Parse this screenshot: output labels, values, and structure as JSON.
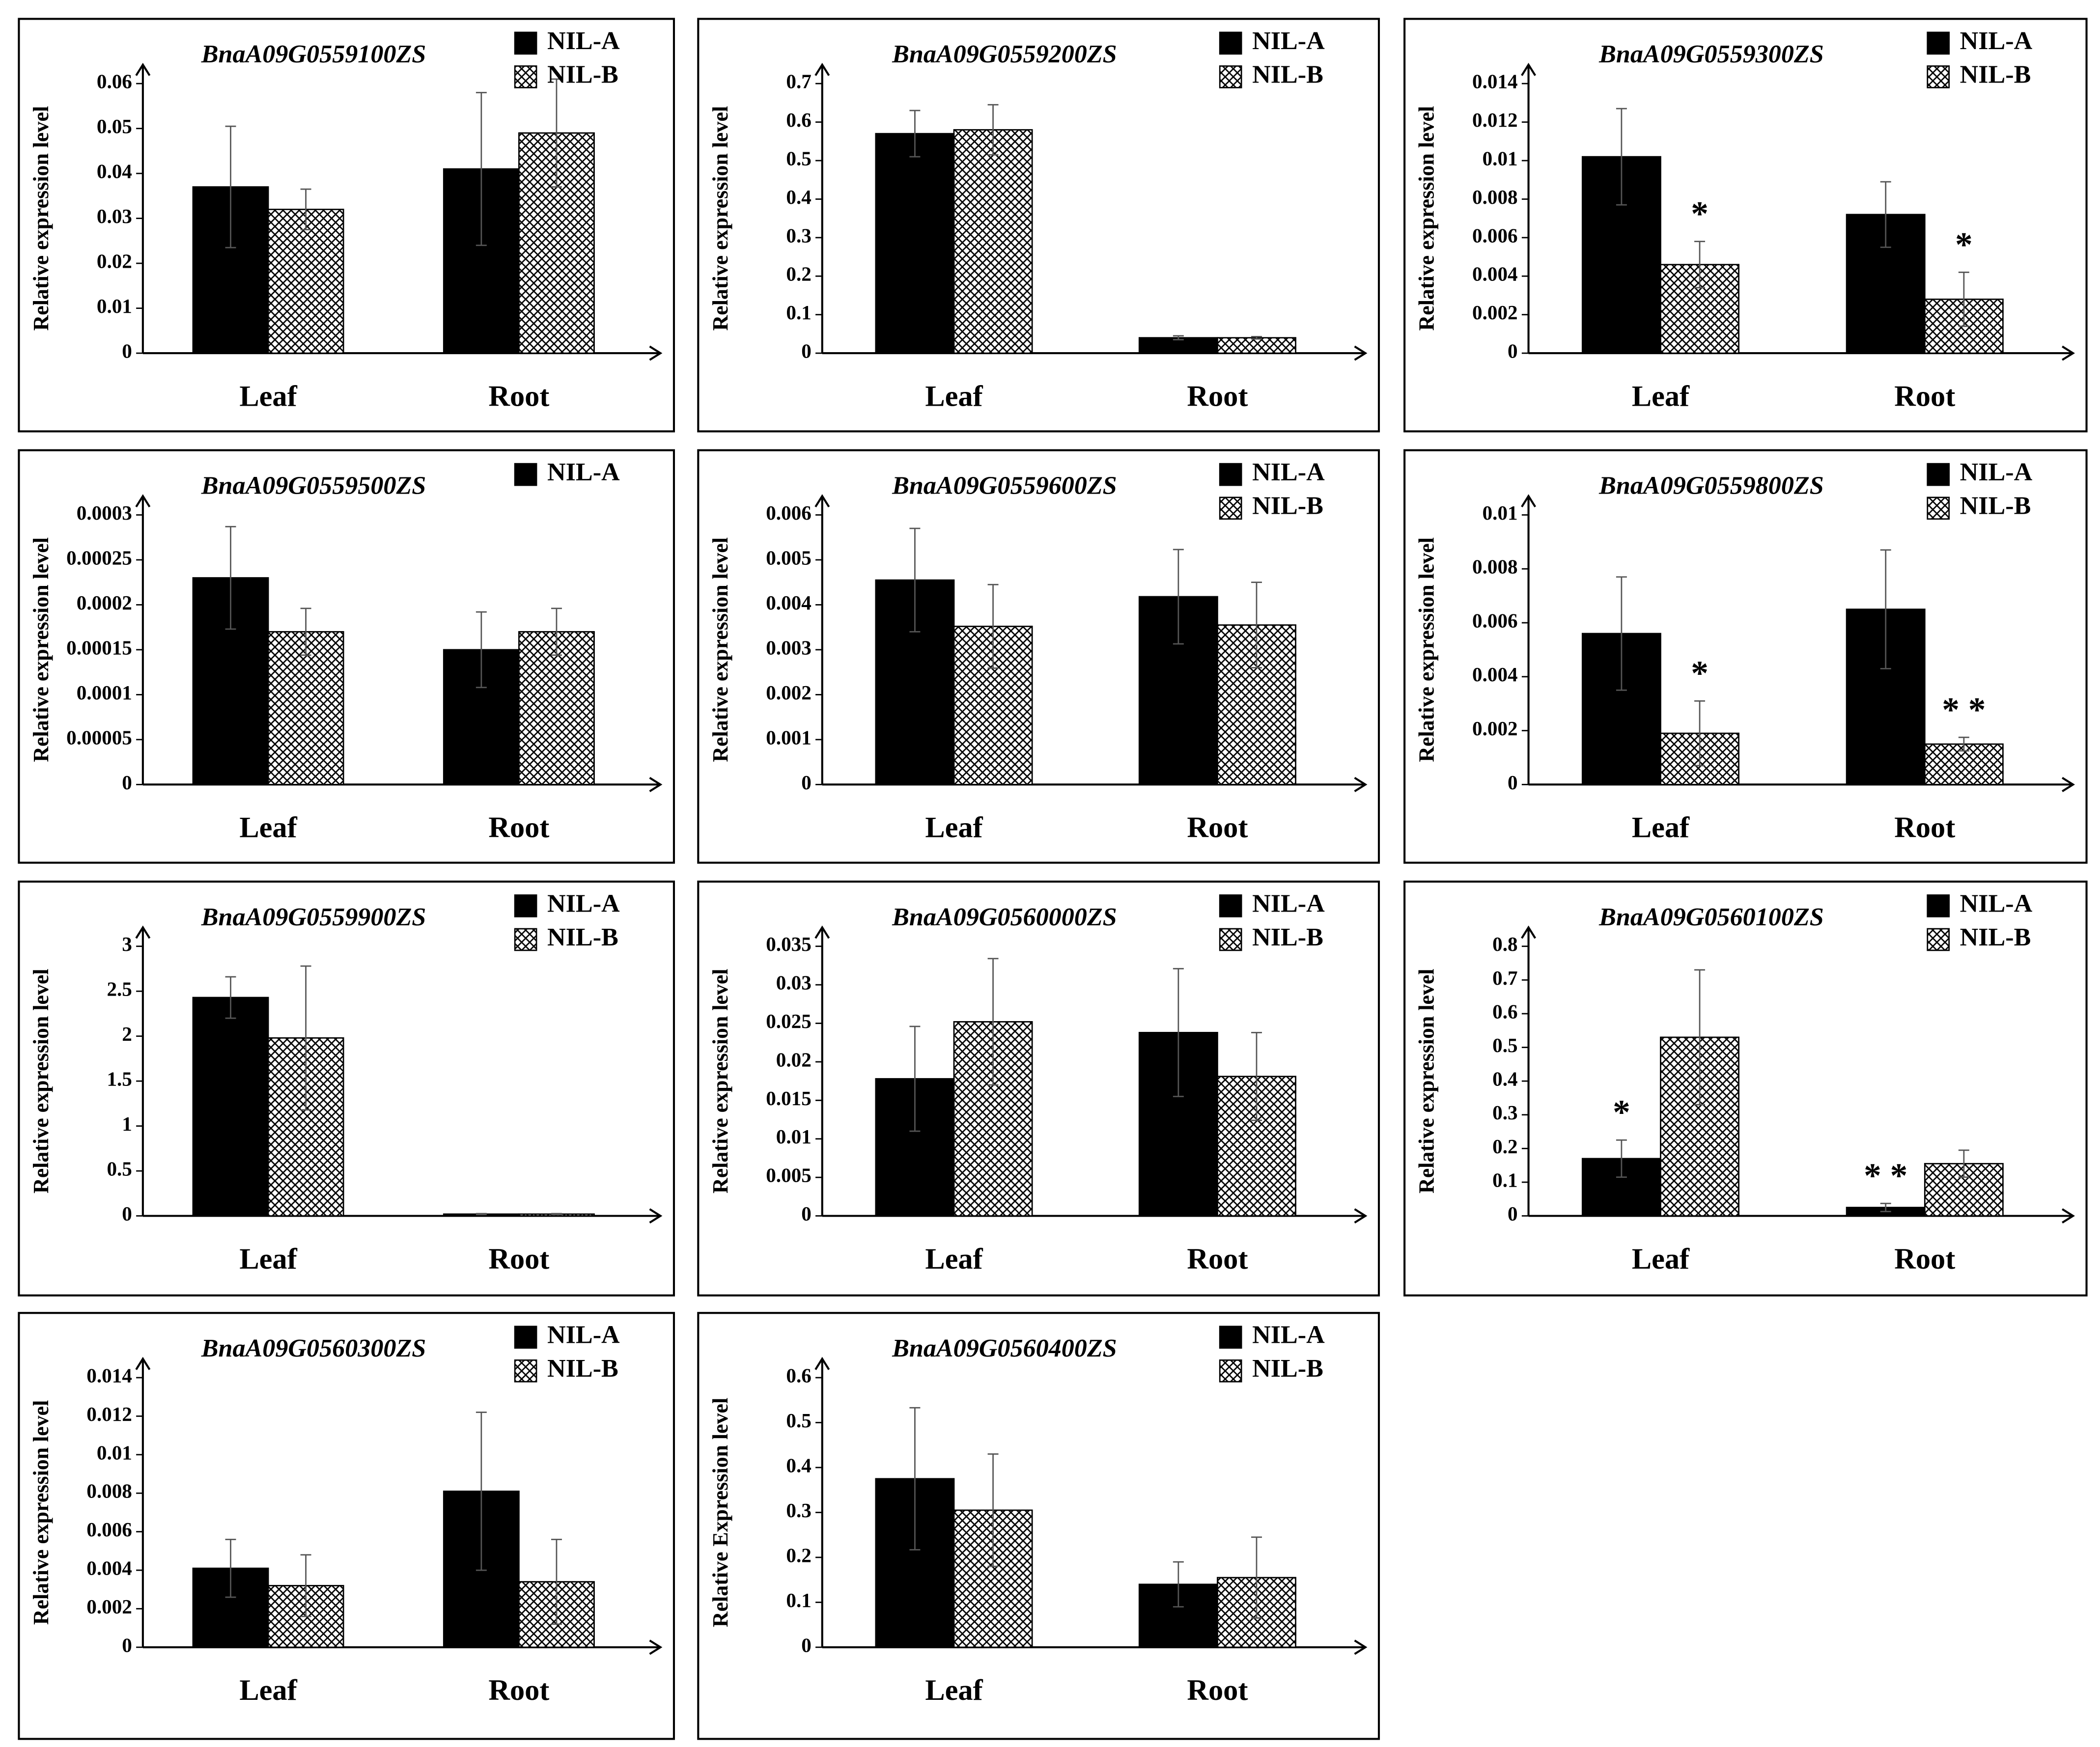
{
  "chart_data": [
    {
      "type": "bar",
      "title": "BnaA09G0559100ZS",
      "y_label": "Relative expression level",
      "categories": [
        "Leaf",
        "Root"
      ],
      "series": [
        {
          "name": "NIL-A",
          "color": "#000000",
          "values": [
            0.037,
            0.041
          ],
          "errors": [
            0.0135,
            0.017
          ]
        },
        {
          "name": "NIL-B",
          "color": "#ffffff",
          "hatch": true,
          "values": [
            0.032,
            0.049
          ],
          "errors": [
            0.0045,
            0.012
          ]
        }
      ],
      "ylim": [
        0,
        0.06
      ],
      "yticks": [
        0,
        0.01,
        0.02,
        0.03,
        0.04,
        0.05,
        0.06
      ]
    },
    {
      "type": "bar",
      "title": "BnaA09G0559200ZS",
      "y_label": "Relative expression level",
      "categories": [
        "Leaf",
        "Root"
      ],
      "series": [
        {
          "name": "NIL-A",
          "color": "#000000",
          "values": [
            0.57,
            0.04
          ],
          "errors": [
            0.06,
            0.005
          ]
        },
        {
          "name": "NIL-B",
          "color": "#ffffff",
          "hatch": true,
          "values": [
            0.58,
            0.04
          ],
          "errors": [
            0.065,
            0.003
          ]
        }
      ],
      "ylim": [
        0,
        0.7
      ],
      "yticks": [
        0,
        0.1,
        0.2,
        0.3,
        0.4,
        0.5,
        0.6,
        0.7
      ]
    },
    {
      "type": "bar",
      "title": "BnaA09G0559300ZS",
      "y_label": "Relative expression level",
      "categories": [
        "Leaf",
        "Root"
      ],
      "series": [
        {
          "name": "NIL-A",
          "color": "#000000",
          "values": [
            0.0102,
            0.0072
          ],
          "errors": [
            0.0025,
            0.0017
          ]
        },
        {
          "name": "NIL-B",
          "color": "#ffffff",
          "hatch": true,
          "values": [
            0.0046,
            0.0028
          ],
          "errors": [
            0.0012,
            0.0014
          ],
          "significance": [
            "*",
            "*"
          ]
        }
      ],
      "ylim": [
        0,
        0.014
      ],
      "yticks": [
        0,
        0.002,
        0.004,
        0.006,
        0.008,
        0.01,
        0.012,
        0.014
      ]
    },
    {
      "type": "bar",
      "title": "BnaA09G0559500ZS",
      "y_label": "Relative expression level",
      "categories": [
        "Leaf",
        "Root"
      ],
      "series": [
        {
          "name": "NIL-A",
          "color": "#000000",
          "values": [
            0.00023,
            0.00015
          ],
          "errors": [
            5.7e-05,
            4.2e-05
          ]
        },
        {
          "color": "#ffffff",
          "hatch": true,
          "values": [
            0.00017,
            0.00017
          ],
          "errors": [
            2.6e-05,
            2.6e-05
          ]
        }
      ],
      "ylim": [
        0,
        0.0003
      ],
      "yticks": [
        0,
        5e-05,
        0.0001,
        0.00015,
        0.0002,
        0.00025,
        0.0003
      ]
    },
    {
      "type": "bar",
      "title": "BnaA09G0559600ZS",
      "y_label": "Relative expression level",
      "categories": [
        "Leaf",
        "Root"
      ],
      "series": [
        {
          "name": "NIL-A",
          "color": "#000000",
          "values": [
            0.00455,
            0.00418
          ],
          "errors": [
            0.00115,
            0.00105
          ]
        },
        {
          "name": "NIL-B",
          "color": "#ffffff",
          "hatch": true,
          "values": [
            0.00352,
            0.00355
          ],
          "errors": [
            0.00093,
            0.00095
          ]
        }
      ],
      "ylim": [
        0,
        0.006
      ],
      "yticks": [
        0,
        0.001,
        0.002,
        0.003,
        0.004,
        0.005,
        0.006
      ]
    },
    {
      "type": "bar",
      "title": "BnaA09G0559800ZS",
      "y_label": "Relative expression level",
      "categories": [
        "Leaf",
        "Root"
      ],
      "series": [
        {
          "name": "NIL-A",
          "color": "#000000",
          "values": [
            0.0056,
            0.0065
          ],
          "errors": [
            0.0021,
            0.0022
          ]
        },
        {
          "name": "NIL-B",
          "color": "#ffffff",
          "hatch": true,
          "values": [
            0.0019,
            0.0015
          ],
          "errors": [
            0.0012,
            0.00025
          ],
          "significance": [
            "*",
            "* *"
          ]
        }
      ],
      "ylim": [
        0,
        0.01
      ],
      "yticks": [
        0,
        0.002,
        0.004,
        0.006,
        0.008,
        0.01
      ]
    },
    {
      "type": "bar",
      "title": "BnaA09G0559900ZS",
      "y_label": "Relative expression level",
      "categories": [
        "Leaf",
        "Root"
      ],
      "series": [
        {
          "name": "NIL-A",
          "color": "#000000",
          "values": [
            2.43,
            0.02
          ],
          "errors": [
            0.23,
            0.005
          ]
        },
        {
          "name": "NIL-B",
          "color": "#ffffff",
          "hatch": true,
          "values": [
            1.98,
            0.02
          ],
          "errors": [
            0.8,
            0.005
          ]
        }
      ],
      "ylim": [
        0,
        3
      ],
      "yticks": [
        0,
        0.5,
        1,
        1.5,
        2,
        2.5,
        3
      ]
    },
    {
      "type": "bar",
      "title": "BnaA09G0560000ZS",
      "y_label": "Relative expression level",
      "categories": [
        "Leaf",
        "Root"
      ],
      "series": [
        {
          "name": "NIL-A",
          "color": "#000000",
          "values": [
            0.0178,
            0.0238
          ],
          "errors": [
            0.0068,
            0.0083
          ]
        },
        {
          "name": "NIL-B",
          "color": "#ffffff",
          "hatch": true,
          "values": [
            0.0252,
            0.0181
          ],
          "errors": [
            0.0082,
            0.0057
          ]
        }
      ],
      "ylim": [
        0,
        0.035
      ],
      "yticks": [
        0,
        0.005,
        0.01,
        0.015,
        0.02,
        0.025,
        0.03,
        0.035
      ]
    },
    {
      "type": "bar",
      "title": "BnaA09G0560100ZS",
      "y_label": "Relative expression level",
      "categories": [
        "Leaf",
        "Root"
      ],
      "series": [
        {
          "name": "NIL-A",
          "color": "#000000",
          "values": [
            0.17,
            0.025
          ],
          "errors": [
            0.055,
            0.012
          ],
          "significance": [
            "*",
            "* *"
          ]
        },
        {
          "name": "NIL-B",
          "color": "#ffffff",
          "hatch": true,
          "values": [
            0.53,
            0.155
          ],
          "errors": [
            0.2,
            0.04
          ]
        }
      ],
      "ylim": [
        0,
        0.8
      ],
      "yticks": [
        0,
        0.1,
        0.2,
        0.3,
        0.4,
        0.5,
        0.6,
        0.7,
        0.8
      ]
    },
    {
      "type": "bar",
      "title": "BnaA09G0560300ZS",
      "y_label": "Relative expression level",
      "categories": [
        "Leaf",
        "Root"
      ],
      "series": [
        {
          "name": "NIL-A",
          "color": "#000000",
          "values": [
            0.0041,
            0.0081
          ],
          "errors": [
            0.0015,
            0.0041
          ]
        },
        {
          "name": "NIL-B",
          "color": "#ffffff",
          "hatch": true,
          "values": [
            0.0032,
            0.0034
          ],
          "errors": [
            0.0016,
            0.0022
          ]
        }
      ],
      "ylim": [
        0,
        0.014
      ],
      "yticks": [
        0,
        0.002,
        0.004,
        0.006,
        0.008,
        0.01,
        0.012,
        0.014
      ]
    },
    {
      "type": "bar",
      "title": "BnaA09G0560400ZS",
      "y_label": "Relative Expression level",
      "categories": [
        "Leaf",
        "Root"
      ],
      "series": [
        {
          "name": "NIL-A",
          "color": "#000000",
          "values": [
            0.375,
            0.14
          ],
          "errors": [
            0.158,
            0.05
          ]
        },
        {
          "name": "NIL-B",
          "color": "#ffffff",
          "hatch": true,
          "values": [
            0.305,
            0.155
          ],
          "errors": [
            0.125,
            0.09
          ]
        }
      ],
      "ylim": [
        0,
        0.6
      ],
      "yticks": [
        0,
        0.1,
        0.2,
        0.3,
        0.4,
        0.5,
        0.6
      ]
    }
  ]
}
